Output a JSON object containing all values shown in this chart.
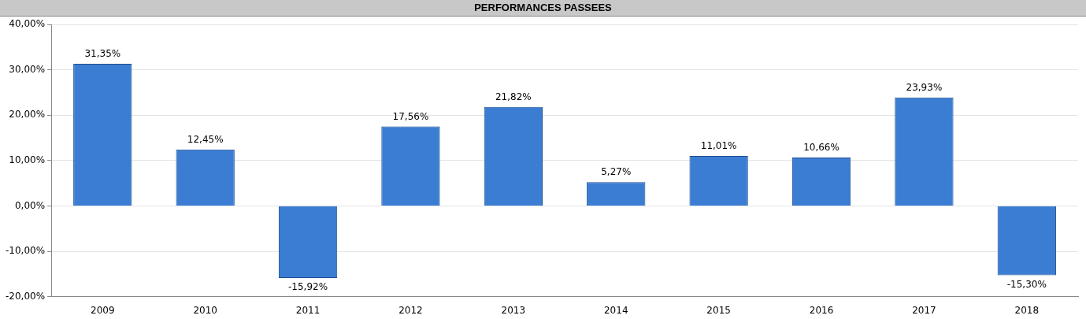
{
  "chart_data": {
    "type": "bar",
    "title": "PERFORMANCES PASSEES",
    "categories": [
      "2009",
      "2010",
      "2011",
      "2012",
      "2013",
      "2014",
      "2015",
      "2016",
      "2017",
      "2018"
    ],
    "values": [
      31.35,
      12.45,
      -15.92,
      17.56,
      21.82,
      5.27,
      11.01,
      10.66,
      23.93,
      -15.3
    ],
    "value_labels": [
      "31,35%",
      "12,45%",
      "-15,92%",
      "17,56%",
      "21,82%",
      "5,27%",
      "11,01%",
      "10,66%",
      "23,93%",
      "-15,30%"
    ],
    "color": "#3b7dd3",
    "ylim": [
      -20,
      40
    ],
    "yticks": [
      {
        "value": -20,
        "label": "-20,00%"
      },
      {
        "value": -10,
        "label": "-10,00%"
      },
      {
        "value": 0,
        "label": "0,00%"
      },
      {
        "value": 10,
        "label": "10,00%"
      },
      {
        "value": 20,
        "label": "20,00%"
      },
      {
        "value": 30,
        "label": "30,00%"
      },
      {
        "value": 40,
        "label": "40,00%"
      }
    ],
    "grid": "y"
  }
}
